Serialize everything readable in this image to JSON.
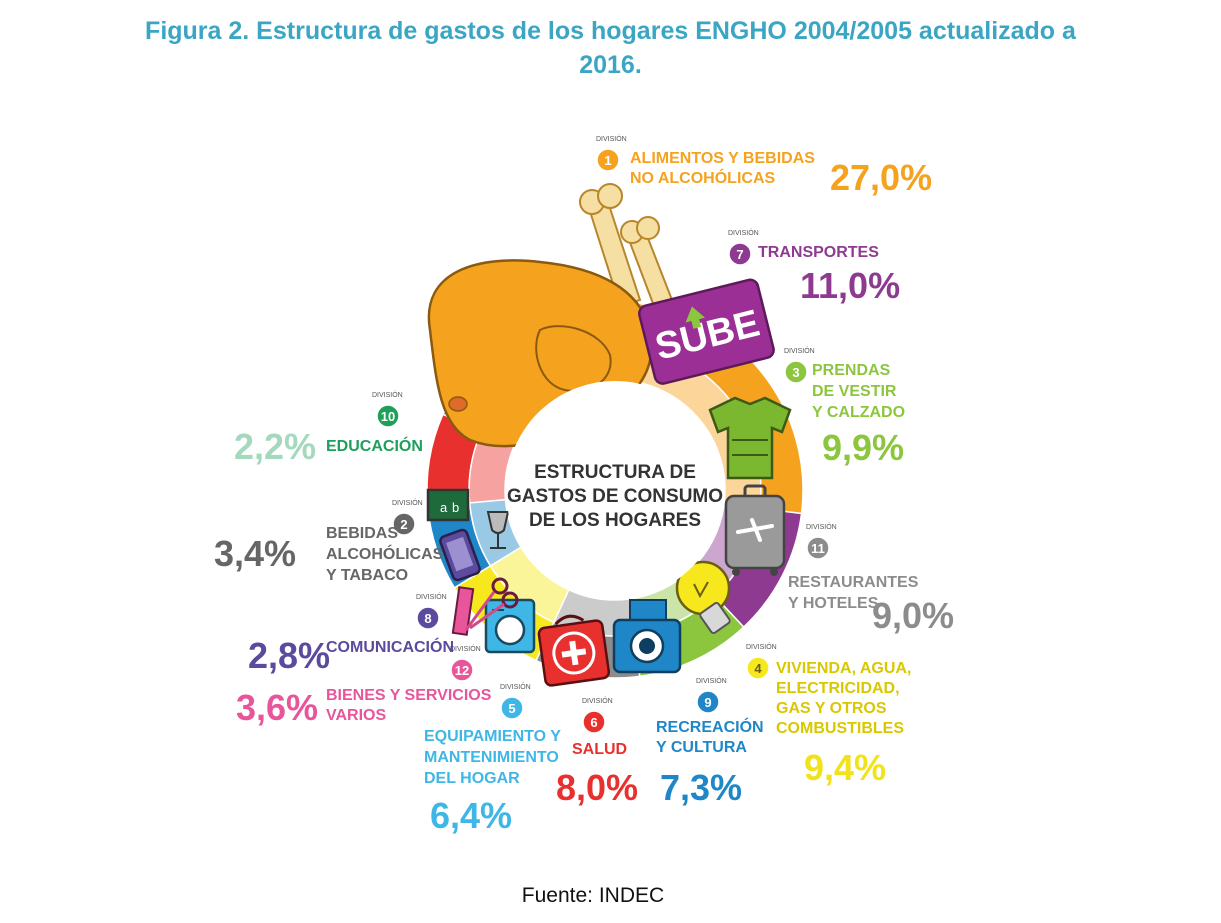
{
  "header": {
    "title_line1": "Figura 2. Estructura de gastos de los hogares ENGHO 2004/2005 actualizado a",
    "title_line2": "2016."
  },
  "footer": {
    "source": "Fuente: INDEC"
  },
  "chart_data": {
    "type": "pie",
    "title": "Figura 2. Estructura de gastos de los hogares ENGHO 2004/2005 actualizado a 2016.",
    "center_label": [
      "ESTRUCTURA DE",
      "GASTOS DE CONSUMO",
      "DE LOS HOGARES"
    ],
    "division_word": "DIVISIÓN",
    "unit": "%",
    "slices": [
      {
        "division": "1",
        "label": [
          "ALIMENTOS Y BEBIDAS",
          "NO ALCOHÓLICAS"
        ],
        "value": 27.0,
        "display": "27,0%",
        "color": "#f5a21e",
        "icon": "chicken-icon"
      },
      {
        "division": "7",
        "label": [
          "TRANSPORTES"
        ],
        "value": 11.0,
        "display": "11,0%",
        "color": "#8e3a91",
        "icon": "sube-card-icon"
      },
      {
        "division": "3",
        "label": [
          "PRENDAS",
          "DE VESTIR",
          "Y CALZADO"
        ],
        "value": 9.9,
        "display": "9,9%",
        "color": "#8cc63f",
        "icon": "tshirt-icon"
      },
      {
        "division": "11",
        "label": [
          "RESTAURANTES",
          "Y HOTELES"
        ],
        "value": 9.0,
        "display": "9,0%",
        "color": "#8c8c8c",
        "icon": "suitcase-icon"
      },
      {
        "division": "4",
        "label": [
          "VIVIENDA, AGUA,",
          "ELECTRICIDAD,",
          "GAS Y OTROS",
          "COMBUSTIBLES"
        ],
        "value": 9.4,
        "display": "9,4%",
        "color": "#f7e81e",
        "icon": "lightbulb-icon"
      },
      {
        "division": "9",
        "label": [
          "RECREACIÓN",
          "Y CULTURA"
        ],
        "value": 7.3,
        "display": "7,3%",
        "color": "#1f87c8",
        "icon": "camera-icon"
      },
      {
        "division": "6",
        "label": [
          "SALUD"
        ],
        "value": 8.0,
        "display": "8,0%",
        "color": "#e8312f",
        "icon": "first-aid-kit-icon"
      },
      {
        "division": "5",
        "label": [
          "EQUIPAMIENTO Y",
          "MANTENIMIENTO",
          "DEL HOGAR"
        ],
        "value": 6.4,
        "display": "6,4%",
        "color": "#3fb7e6",
        "icon": "washing-machine-icon"
      },
      {
        "division": "12",
        "label": [
          "BIENES Y SERVICIOS",
          "VARIOS"
        ],
        "value": 3.6,
        "display": "3,6%",
        "color": "#e8559b",
        "icon": "scissors-icon"
      },
      {
        "division": "8",
        "label": [
          "COMUNICACIÓN"
        ],
        "value": 2.8,
        "display": "2,8%",
        "color": "#5b4a9e",
        "icon": "phone-icon"
      },
      {
        "division": "2",
        "label": [
          "BEBIDAS",
          "ALCOHÓLICAS",
          "Y TABACO"
        ],
        "value": 3.4,
        "display": "3,4%",
        "color": "#666666",
        "icon": "wine-glass-icon"
      },
      {
        "division": "10",
        "label": [
          "EDUCACIÓN"
        ],
        "value": 2.2,
        "display": "2,2%",
        "color": "#1ea05a",
        "icon": "chalkboard-icon"
      }
    ]
  }
}
